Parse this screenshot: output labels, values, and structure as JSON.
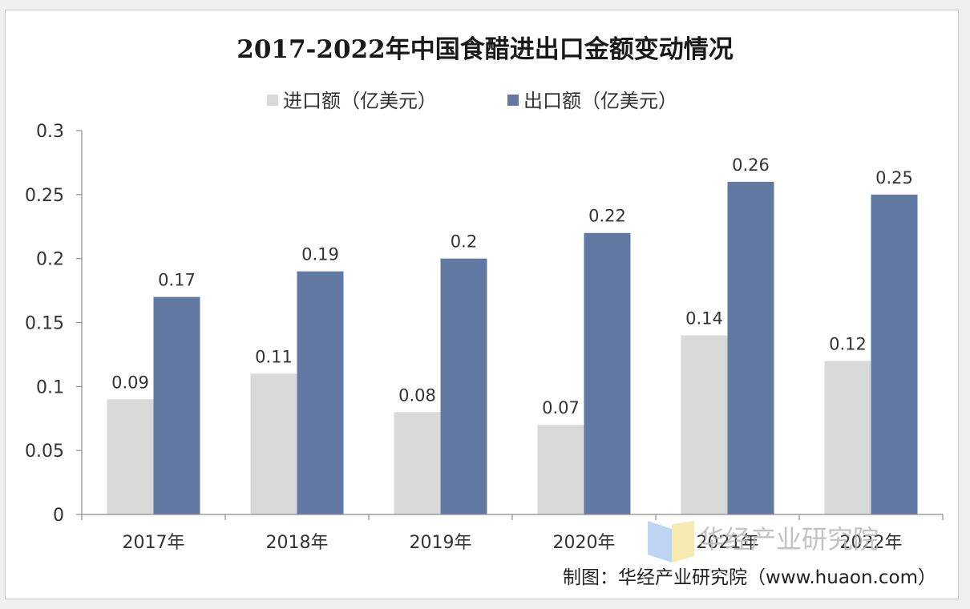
{
  "chart_data": {
    "type": "bar",
    "title": "2017-2022年中国食醋进出口金额变动情况",
    "categories": [
      "2017年",
      "2018年",
      "2019年",
      "2020年",
      "2021年",
      "2022年"
    ],
    "series": [
      {
        "name": "进口额（亿美元）",
        "values": [
          0.09,
          0.11,
          0.08,
          0.07,
          0.14,
          0.12
        ],
        "color": "#d9d9d9"
      },
      {
        "name": "出口额（亿美元）",
        "values": [
          0.17,
          0.19,
          0.2,
          0.22,
          0.26,
          0.25
        ],
        "color": "#6279a3"
      }
    ],
    "data_labels": [
      [
        "0.09",
        "0.11",
        "0.08",
        "0.07",
        "0.14",
        "0.12"
      ],
      [
        "0.17",
        "0.19",
        "0.2",
        "0.22",
        "0.26",
        "0.25"
      ]
    ],
    "ylim": [
      0,
      0.3
    ],
    "yticks": [
      0,
      0.05,
      0.1,
      0.15,
      0.2,
      0.25,
      0.3
    ],
    "ytick_labels": [
      "0",
      "0.05",
      "0.1",
      "0.15",
      "0.2",
      "0.25",
      "0.3"
    ],
    "xlabel": "",
    "ylabel": "",
    "grid": false,
    "legend_position": "top-center"
  },
  "watermark": {
    "text": "华经产业研究院"
  },
  "source_note": "制图：华经产业研究院（www.huaon.com）"
}
